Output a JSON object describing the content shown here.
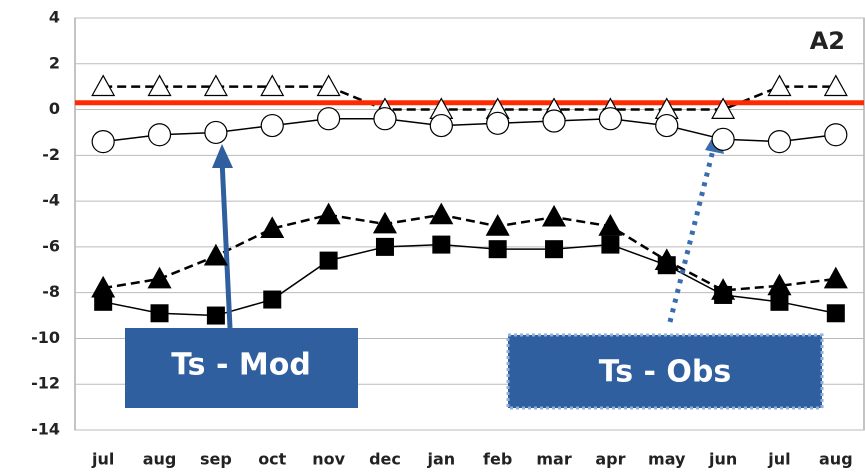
{
  "chart_data": {
    "type": "line",
    "annotations": [
      "A2",
      "Ts - Mod",
      "Ts - Obs"
    ],
    "categories": [
      "jul",
      "aug",
      "sep",
      "oct",
      "nov",
      "dec",
      "jan",
      "feb",
      "mar",
      "apr",
      "may",
      "jun",
      "jul",
      "aug"
    ],
    "series": [
      {
        "color": "#000000",
        "marker": "triangle-open",
        "dash": true,
        "values": [
          1,
          1,
          1,
          1,
          1,
          0,
          0,
          0,
          0,
          0,
          0,
          0,
          1,
          1
        ]
      },
      {
        "color": "#000000",
        "marker": "circle-open",
        "dash": false,
        "values": [
          -1.4,
          -1.1,
          -1.0,
          -0.7,
          -0.4,
          -0.4,
          -0.7,
          -0.6,
          -0.5,
          -0.4,
          -0.7,
          -1.3,
          -1.4,
          -1.1
        ]
      },
      {
        "color": "#000000",
        "marker": "triangle",
        "dash": true,
        "values": [
          -7.8,
          -7.4,
          -6.4,
          -5.2,
          -4.6,
          -5.0,
          -4.6,
          -5.1,
          -4.7,
          -5.1,
          -6.6,
          -7.9,
          -7.7,
          -7.4
        ]
      },
      {
        "color": "#000000",
        "marker": "square",
        "dash": false,
        "values": [
          -8.4,
          -8.9,
          -9.0,
          -8.3,
          -6.6,
          -6.0,
          -5.9,
          -6.1,
          -6.1,
          -5.9,
          -6.8,
          -8.1,
          -8.4,
          -8.9
        ]
      }
    ],
    "reference_line": {
      "value": 0.3,
      "color": "#ff2a00"
    },
    "ylim": [
      -14,
      4
    ],
    "yticks": [
      4,
      2,
      0,
      -2,
      -4,
      -6,
      -8,
      -10,
      -12,
      -14
    ],
    "grid": true
  }
}
